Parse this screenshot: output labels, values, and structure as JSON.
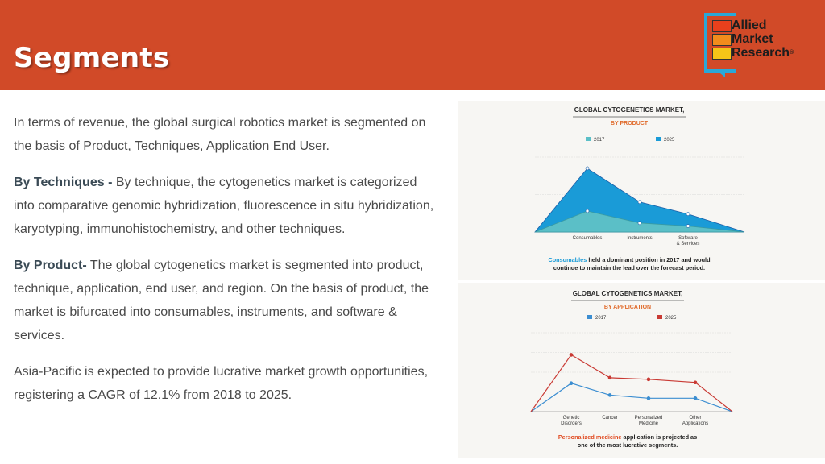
{
  "header": {
    "title": "Segments"
  },
  "logo": {
    "line1": "Allied",
    "line2": "Market",
    "line3": "Research",
    "reg": "®"
  },
  "body": {
    "p1": "In terms of revenue, the global surgical robotics market is segmented on the basis of Product, Techniques, Application End User.",
    "p2_label": "By Techniques -",
    "p2_text": " By technique, the cytogenetics market is categorized into comparative genomic hybridization, fluorescence in situ hybridization, karyotyping, immunohistochemistry, and other techniques.",
    "p3_label": "By Product-",
    "p3_text": " The global cytogenetics market is segmented into product, technique, application, end user, and region. On the basis of product, the market is bifurcated into consumables, instruments, and software & services.",
    "p4": "Asia-Pacific is expected to provide lucrative market growth opportunities, registering a CAGR of 12.1% from 2018 to 2025."
  },
  "chart_data": [
    {
      "type": "area",
      "title": "GLOBAL CYTOGENETICS MARKET,",
      "subtitle": "BY PRODUCT",
      "categories": [
        "Consumables",
        "Instruments",
        "Software & Services"
      ],
      "series": [
        {
          "name": "2017",
          "color": "#5bbfc7",
          "values": [
            28,
            12,
            8
          ]
        },
        {
          "name": "2025",
          "color": "#1a9bd7",
          "values": [
            85,
            40,
            24
          ]
        }
      ],
      "ylim": [
        0,
        100
      ],
      "grid": true,
      "legend": "top-center",
      "caption_highlight": "Consumables",
      "caption_rest": " held a dominant position in 2017 and would",
      "caption_line2": "continue to maintain the lead over the forecast period."
    },
    {
      "type": "line",
      "title": "GLOBAL CYTOGENETICS MARKET,",
      "subtitle": "BY APPLICATION",
      "categories": [
        "Genetic Disorders",
        "Cancer",
        "Personalized Medicine",
        "Other Applications"
      ],
      "series": [
        {
          "name": "2017",
          "color": "#3c8ed1",
          "values": [
            36,
            21,
            17,
            17
          ]
        },
        {
          "name": "2025",
          "color": "#c93a34",
          "values": [
            72,
            43,
            41,
            37
          ]
        }
      ],
      "ylim": [
        0,
        100
      ],
      "grid": true,
      "legend": "top-center",
      "caption_highlight": "Personalized medicine",
      "caption_rest": " application is projected as",
      "caption_line2": "one of the most lucrative segments."
    }
  ]
}
